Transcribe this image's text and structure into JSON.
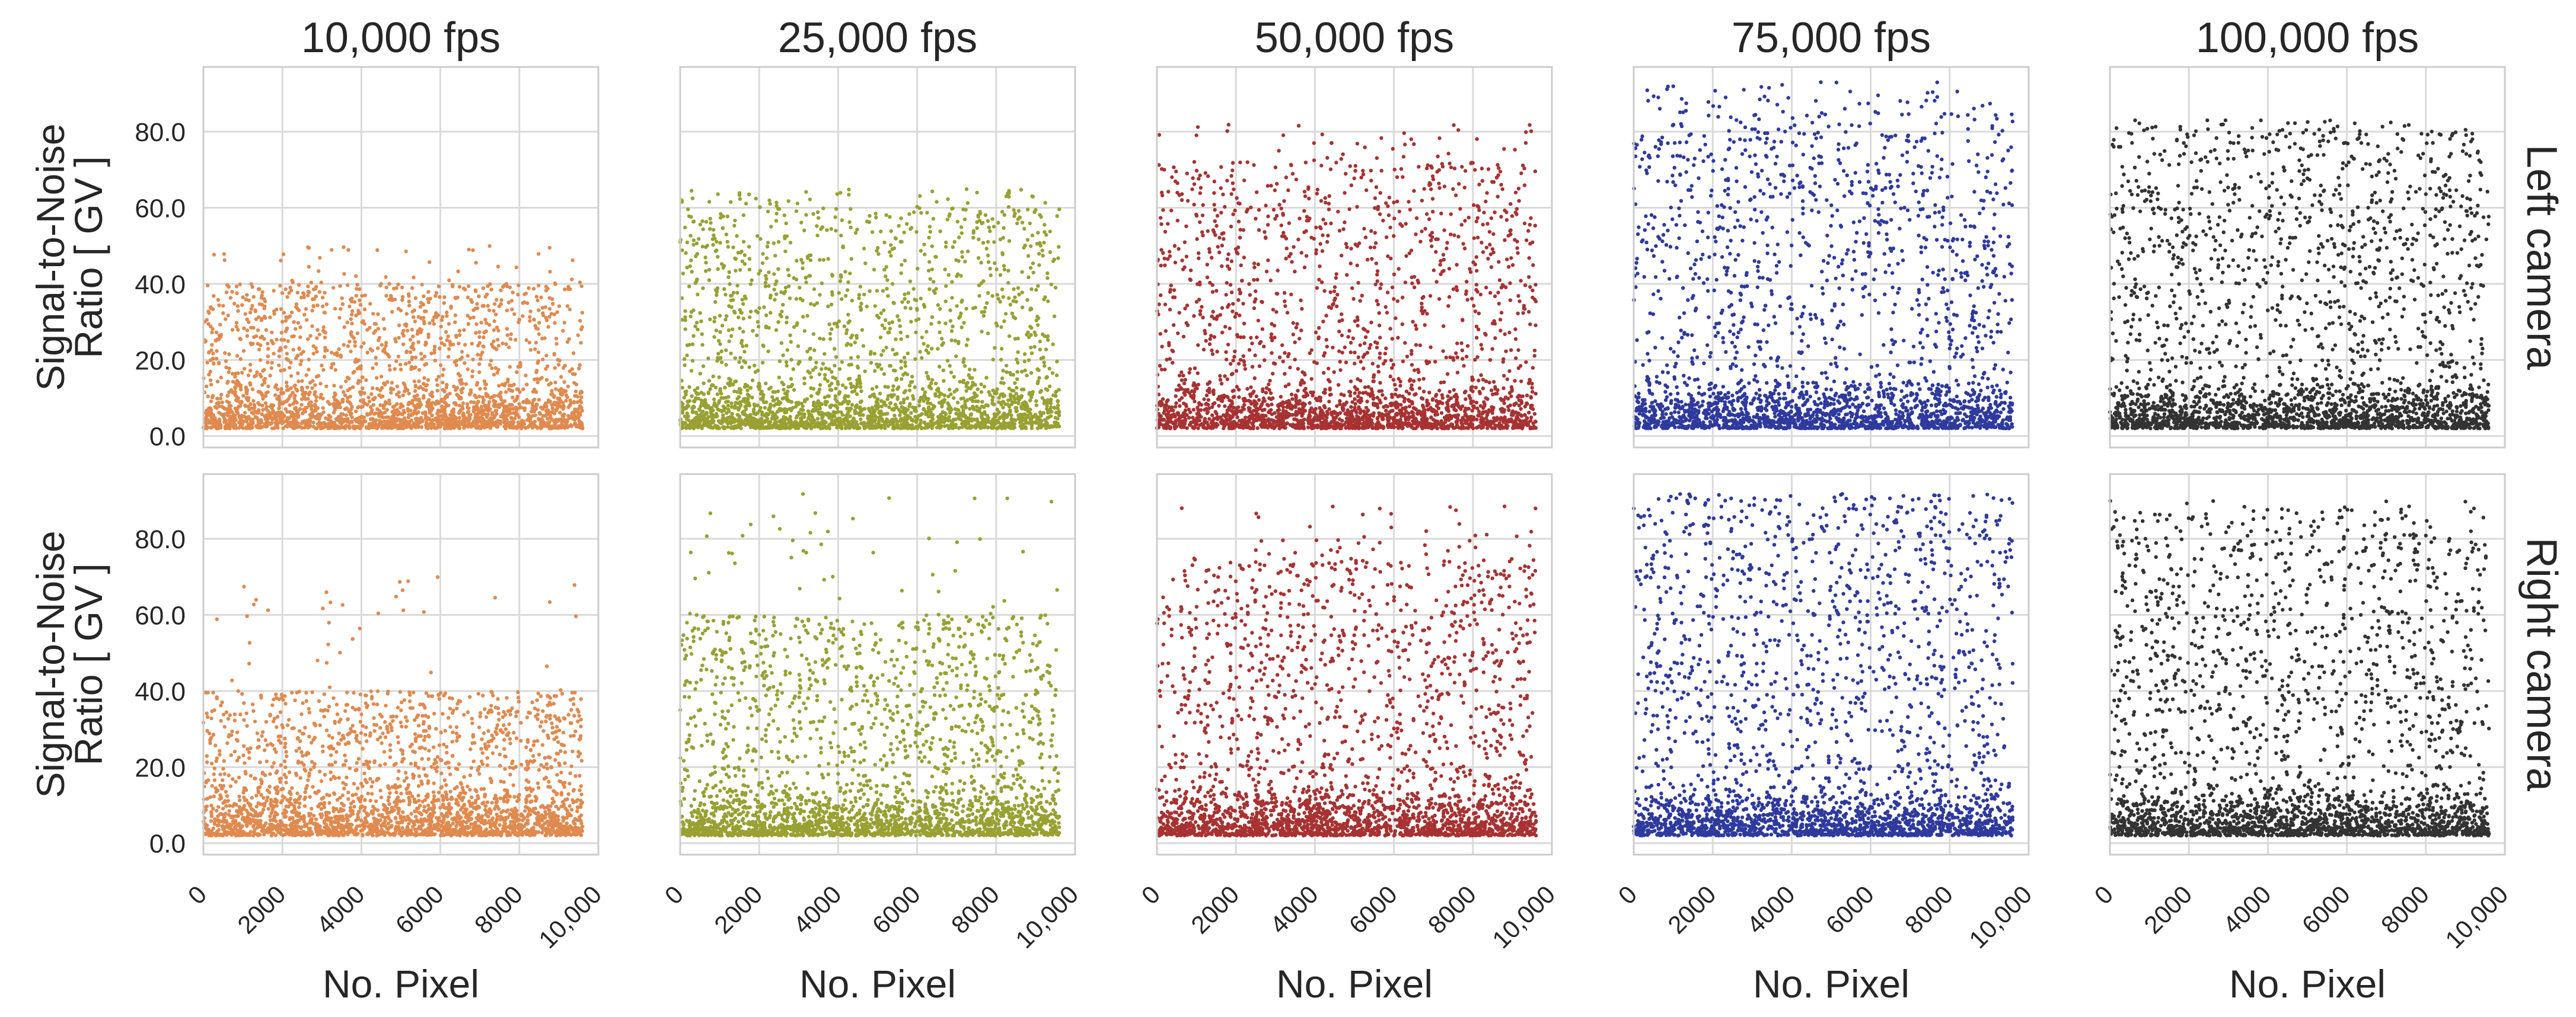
{
  "chart_data": {
    "type": "scatter",
    "title": "",
    "columns": [
      {
        "label": "10,000 fps",
        "color": "#e08a4f"
      },
      {
        "label": "25,000 fps",
        "color": "#98a132"
      },
      {
        "label": "50,000 fps",
        "color": "#a83232"
      },
      {
        "label": "75,000 fps",
        "color": "#2e3a9e"
      },
      {
        "label": "100,000 fps",
        "color": "#333333"
      }
    ],
    "rows": [
      {
        "label": "Left camera",
        "ylabel_line1": "Signal-to-Noise",
        "ylabel_line2": "Ratio [ GV ]"
      },
      {
        "label": "Right camera",
        "ylabel_line1": "Signal-to-Noise",
        "ylabel_line2": "Ratio [ GV ]"
      }
    ],
    "xlabel": "No. Pixel",
    "xlim": [
      0,
      10000
    ],
    "ylim": [
      -3,
      97
    ],
    "xticks": [
      0,
      2000,
      4000,
      6000,
      8000,
      10000
    ],
    "xtick_labels": [
      "0",
      "2000",
      "4000",
      "6000",
      "8000",
      "10,000"
    ],
    "yticks": [
      0,
      20,
      40,
      60,
      80
    ],
    "ytick_labels": [
      "0.0",
      "20.0",
      "40.0",
      "60.0",
      "80.0"
    ],
    "grid": true,
    "pixel_range": [
      0,
      9600
    ],
    "panels": [
      {
        "row": 0,
        "col": 0,
        "band_max": 40,
        "upper_max": 50,
        "points": 2600
      },
      {
        "row": 0,
        "col": 1,
        "band_max": 60,
        "upper_max": 65,
        "points": 2600
      },
      {
        "row": 0,
        "col": 2,
        "band_max": 72,
        "upper_max": 82,
        "points": 2600
      },
      {
        "row": 0,
        "col": 3,
        "band_max": 85,
        "upper_max": 93,
        "points": 2600
      },
      {
        "row": 0,
        "col": 4,
        "band_max": 80,
        "upper_max": 83,
        "points": 2600
      },
      {
        "row": 1,
        "col": 0,
        "band_max": 40,
        "upper_max": 70,
        "points": 2600
      },
      {
        "row": 1,
        "col": 1,
        "band_max": 60,
        "upper_max": 92,
        "points": 2600
      },
      {
        "row": 1,
        "col": 2,
        "band_max": 75,
        "upper_max": 89,
        "points": 2600
      },
      {
        "row": 1,
        "col": 3,
        "band_max": 90,
        "upper_max": 92,
        "points": 2600
      },
      {
        "row": 1,
        "col": 4,
        "band_max": 85,
        "upper_max": 90,
        "points": 2600
      }
    ]
  }
}
